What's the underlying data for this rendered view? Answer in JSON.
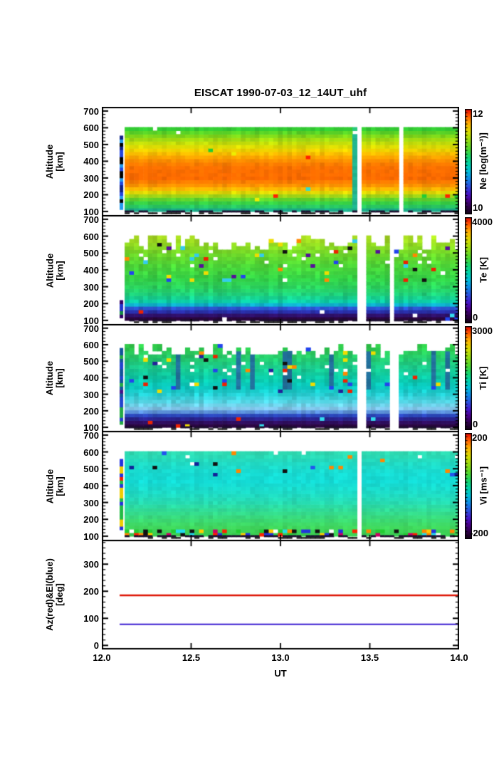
{
  "chart_data": {
    "type": "heatmap",
    "title": "EISCAT 1990-07-03_12_14UT_uhf",
    "x_axis": {
      "label": "UT",
      "range": [
        12.0,
        14.0
      ],
      "tick_values": [
        12.0,
        12.5,
        13.0,
        13.5,
        14.0
      ],
      "tick_labels": [
        "12.0",
        "12.5",
        "13.0",
        "13.5",
        "14.0"
      ]
    },
    "altitude_axis": {
      "label_line1": "Altitude",
      "label_line2": "[km]",
      "range": [
        70,
        725
      ],
      "tick_values": [
        100,
        200,
        300,
        400,
        500,
        600,
        700
      ],
      "minor_step": 20
    },
    "colorbar_gradient": [
      [
        0.0,
        "#100010"
      ],
      [
        0.07,
        "#2e0048"
      ],
      [
        0.14,
        "#4b0090"
      ],
      [
        0.2,
        "#4418cc"
      ],
      [
        0.27,
        "#2a52e0"
      ],
      [
        0.34,
        "#0f8ce8"
      ],
      [
        0.41,
        "#00c0d8"
      ],
      [
        0.48,
        "#00d4a8"
      ],
      [
        0.55,
        "#16d56a"
      ],
      [
        0.62,
        "#50d82e"
      ],
      [
        0.7,
        "#94dc12"
      ],
      [
        0.78,
        "#d6dc00"
      ],
      [
        0.86,
        "#ffb300"
      ],
      [
        0.93,
        "#ff5e00"
      ],
      [
        1.0,
        "#e80000"
      ]
    ],
    "heatmap_panels": [
      {
        "name": "electron-density",
        "colorbar": {
          "label": "Ne [log(m⁻³)]",
          "max": "12",
          "min": "10"
        },
        "profile": [
          [
            592,
            "#33cc33"
          ],
          [
            565,
            "#66d622"
          ],
          [
            535,
            "#9cdb11"
          ],
          [
            505,
            "#c8dd08"
          ],
          [
            478,
            "#e8dc00"
          ],
          [
            452,
            "#f8c400"
          ],
          [
            425,
            "#ffa500"
          ],
          [
            398,
            "#ff8800"
          ],
          [
            370,
            "#ff7300"
          ],
          [
            300,
            "#ff6a00"
          ],
          [
            262,
            "#ff8c00"
          ],
          [
            238,
            "#ffb300"
          ],
          [
            218,
            "#e8d800"
          ],
          [
            200,
            "#b8d810"
          ],
          [
            183,
            "#7ad622"
          ],
          [
            160,
            "#3bd23b"
          ],
          [
            138,
            "#2ecc55"
          ],
          [
            120,
            "#22c27a"
          ],
          [
            108,
            "#1aa88a"
          ],
          [
            100,
            "#157f77"
          ]
        ],
        "noise": {
          "cellJitter": 0.05,
          "colJitter": 0.05,
          "topBase": 592,
          "topVar": 1,
          "missProbHigh": 0.02,
          "missAbove": 555,
          "outlier": {
            "prob": 0.005,
            "minAlt": 170,
            "colors": [
              "#ff2200",
              "#33ddcc",
              "#eeee00",
              "#22cc33"
            ]
          }
        },
        "gaps": [
          13.44,
          13.66
        ],
        "special": [
          {
            "ut": 13.414,
            "tint": "#22ccbb",
            "amt": 0.55
          }
        ],
        "lead": {
          "ut": 12.1,
          "altTop": 540,
          "altBottom": 112,
          "colors": [
            "#2244dd",
            "#112288",
            "#000000",
            "#2299ee"
          ]
        }
      },
      {
        "name": "electron-temperature",
        "colorbar": {
          "label": "Te [K]",
          "max": "4000",
          "min": "0"
        },
        "profile": [
          [
            590,
            "#a8dc20"
          ],
          [
            540,
            "#8cda22"
          ],
          [
            480,
            "#66d62c"
          ],
          [
            420,
            "#4ad438"
          ],
          [
            350,
            "#33d245"
          ],
          [
            290,
            "#28d160"
          ],
          [
            245,
            "#1ad184"
          ],
          [
            215,
            "#0ccfa6"
          ],
          [
            198,
            "#06c2c6"
          ],
          [
            186,
            "#1e8fd8"
          ],
          [
            176,
            "#2a5ad4"
          ],
          [
            162,
            "#2a3cc0"
          ],
          [
            148,
            "#282a9e"
          ],
          [
            136,
            "#2c1478"
          ],
          [
            124,
            "#330a56"
          ],
          [
            112,
            "#2c0540"
          ],
          [
            100,
            "#1e0330"
          ]
        ],
        "noise": {
          "cellJitter": 0.07,
          "colJitter": 0.07,
          "topBase": 592,
          "topVar": 5,
          "missProbHigh": 0.06,
          "missAbove": 400,
          "outlier": {
            "prob": 0.055,
            "minAlt": 340,
            "colors": [
              "#ee2200",
              "#2244ee",
              "#111111",
              "#eedd00",
              "#ff8800",
              "#33ccee",
              "#551199",
              "#ffffff"
            ]
          },
          "lowSpeckle": {
            "prob": 0.035,
            "maxAlt": 165,
            "colors": [
              "#ee2200",
              "#33ddee",
              "#2244ee",
              "#ffffff"
            ]
          }
        },
        "gaps": [
          13.43,
          13.456,
          13.62
        ],
        "special": [],
        "lead": {
          "ut": 12.1,
          "altTop": 210,
          "altBottom": 115,
          "colors": [
            "#2233cc",
            "#118844",
            "#330066"
          ]
        }
      },
      {
        "name": "ion-temperature",
        "colorbar": {
          "label": "Ti [K]",
          "max": "3000",
          "min": "0"
        },
        "profile": [
          [
            588,
            "#30cc4a"
          ],
          [
            520,
            "#25cc6e"
          ],
          [
            460,
            "#18cb8e"
          ],
          [
            400,
            "#0ccaa8"
          ],
          [
            345,
            "#0ac9c0"
          ],
          [
            300,
            "#25cfd4"
          ],
          [
            262,
            "#4cd4e2"
          ],
          [
            232,
            "#74d2ea"
          ],
          [
            210,
            "#86c4ec"
          ],
          [
            194,
            "#5c92dc"
          ],
          [
            180,
            "#3058cc"
          ],
          [
            166,
            "#2838b0"
          ],
          [
            152,
            "#2a2390"
          ],
          [
            138,
            "#2e1270"
          ],
          [
            124,
            "#300850"
          ],
          [
            100,
            "#260438"
          ]
        ],
        "noise": {
          "cellJitter": 0.07,
          "colJitter": 0.06,
          "topBase": 588,
          "topVar": 4,
          "missProbHigh": 0.05,
          "missAbove": 380,
          "outlier": {
            "prob": 0.05,
            "minAlt": 300,
            "colors": [
              "#2244ee",
              "#222299",
              "#eedd00",
              "#ee2200",
              "#ff8800",
              "#ffffff",
              "#111111"
            ]
          },
          "lowSpeckle": {
            "prob": 0.03,
            "maxAlt": 160,
            "colors": [
              "#ee2200",
              "#33ddee",
              "#eedd00",
              "#ffffff"
            ]
          },
          "blueStreakProb": 0.09
        },
        "gaps": [
          13.43,
          13.456,
          13.6,
          13.63
        ],
        "special": [],
        "lead": {
          "ut": 12.1,
          "altTop": 560,
          "altBottom": 118,
          "colors": [
            "#441188",
            "#22aa44",
            "#2244cc",
            "#115599"
          ]
        }
      },
      {
        "name": "ion-velocity",
        "colorbar": {
          "label": "Vi [ms⁻¹]",
          "max": "200",
          "min": "-200"
        },
        "profile": [
          [
            588,
            "#2edbb2"
          ],
          [
            540,
            "#22dbc2"
          ],
          [
            480,
            "#18dbd2"
          ],
          [
            420,
            "#14dcd6"
          ],
          [
            360,
            "#1cdcc8"
          ],
          [
            300,
            "#26dcb2"
          ],
          [
            255,
            "#30db96"
          ],
          [
            215,
            "#38da7e"
          ],
          [
            180,
            "#3eda6a"
          ],
          [
            155,
            "#40d95e"
          ],
          [
            140,
            "#3ed458"
          ],
          [
            100,
            "#38cc50"
          ]
        ],
        "noise": {
          "cellJitter": 0.04,
          "colJitter": 0.03,
          "topBase": 588,
          "topVar": 1,
          "missProbHigh": 0.01,
          "missAbove": 500,
          "outlier": {
            "prob": 0.03,
            "minAlt": 460,
            "colors": [
              "#2255ee",
              "#112299",
              "#ff8800",
              "#111111"
            ]
          },
          "bottomNoise": {
            "prob": 0.5,
            "maxAlt": 148,
            "colors": [
              "#ff2200",
              "#ffcc00",
              "#22cc33",
              "#2233dd",
              "#111111",
              "#ff8800",
              "#22ddee",
              "#ffffff",
              "#cc0066"
            ]
          }
        },
        "gaps": [
          13.43
        ],
        "special": [],
        "lead": {
          "ut": 12.1,
          "altTop": 545,
          "altBottom": 138,
          "colors": [
            "#ee2200",
            "#2233dd",
            "#eecc00",
            "#22bb44"
          ]
        }
      }
    ],
    "azel_panel": {
      "name": "azimuth-elevation",
      "ylabel_line1": "Az(red)&El(blue)",
      "ylabel_line2": "[deg]",
      "range": [
        -15,
        390
      ],
      "tick_values": [
        0,
        100,
        200,
        300
      ],
      "minor_step": 20,
      "lines": [
        {
          "name": "azimuth",
          "color": "#dd1100",
          "value": 185
        },
        {
          "name": "elevation",
          "color": "#2200cc",
          "value": 78
        }
      ]
    }
  }
}
